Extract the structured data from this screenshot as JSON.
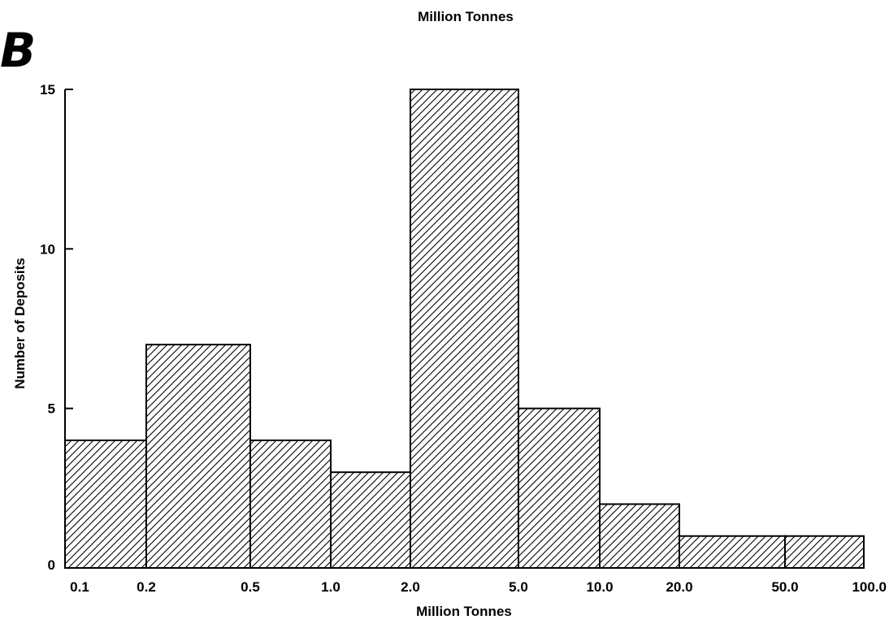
{
  "panel_label": "B",
  "chart_data": {
    "type": "bar",
    "title": "Million Tonnes",
    "xlabel": "Million Tonnes",
    "ylabel": "Number of Deposits",
    "x_scale": "log",
    "x_ticks": [
      "0.1",
      "0.2",
      "0.5",
      "1.0",
      "2.0",
      "5.0",
      "10.0",
      "20.0",
      "50.0",
      "100.0"
    ],
    "y_ticks": [
      "0",
      "5",
      "10",
      "15"
    ],
    "ylim": [
      0,
      15
    ],
    "xlim": [
      0.1,
      100
    ],
    "bins": [
      {
        "from": 0.1,
        "to": 0.2,
        "value": 4
      },
      {
        "from": 0.2,
        "to": 0.5,
        "value": 7
      },
      {
        "from": 0.5,
        "to": 1.0,
        "value": 4
      },
      {
        "from": 1.0,
        "to": 2.0,
        "value": 3
      },
      {
        "from": 2.0,
        "to": 5.0,
        "value": 15
      },
      {
        "from": 5.0,
        "to": 10.0,
        "value": 5
      },
      {
        "from": 10.0,
        "to": 20.0,
        "value": 2
      },
      {
        "from": 20.0,
        "to": 50.0,
        "value": 1
      },
      {
        "from": 50.0,
        "to": 100.0,
        "value": 1
      }
    ],
    "bar_fill": "diagonal-hatch",
    "hatch_color": "#000000",
    "grid": false,
    "legend": "none"
  }
}
